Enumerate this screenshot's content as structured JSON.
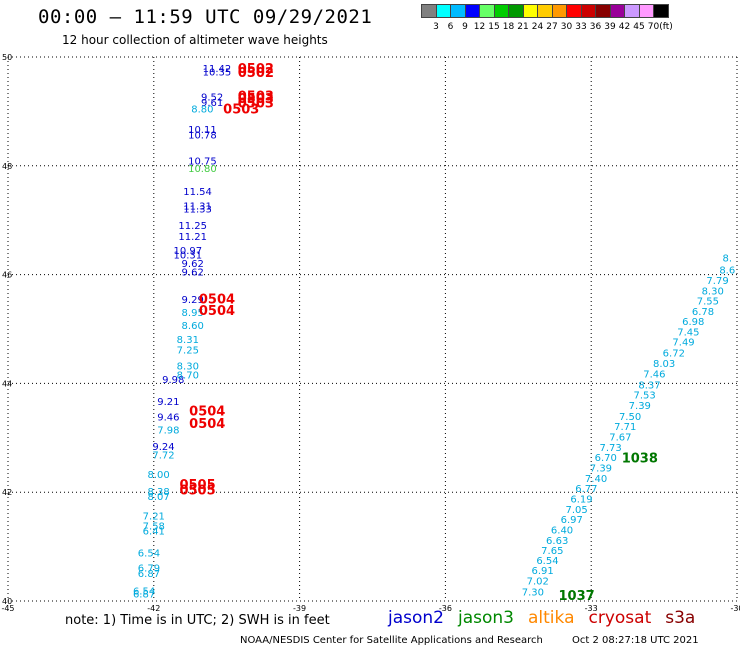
{
  "header": {
    "title": "00:00 – 11:59 UTC 09/29/2021",
    "subtitle": "12 hour collection of altimeter wave heights"
  },
  "legend": {
    "colors": [
      "#808080",
      "#00ffff",
      "#00bbff",
      "#0000ff",
      "#66ff66",
      "#00cc00",
      "#009900",
      "#ffff00",
      "#ffcc00",
      "#ff9900",
      "#ff0000",
      "#cc0000",
      "#880000",
      "#990099",
      "#cc99ff",
      "#ff99ff",
      "#000000"
    ],
    "labels": [
      "3",
      "6",
      "9",
      "12",
      "15",
      "18",
      "21",
      "24",
      "27",
      "30",
      "33",
      "36",
      "39",
      "42",
      "45",
      "70"
    ],
    "unit": "(ft)"
  },
  "footer": {
    "note": "note: 1) Time is in UTC; 2) SWH is in feet",
    "missions": [
      {
        "name": "jason2",
        "color": "#0000cc"
      },
      {
        "name": "jason3",
        "color": "#008800"
      },
      {
        "name": "altika",
        "color": "#ff8800"
      },
      {
        "name": "cryosat",
        "color": "#cc0000"
      },
      {
        "name": "s3a",
        "color": "#880000"
      }
    ],
    "credit": "NOAA/NESDIS Center for Satellite Applications and Research",
    "timestamp": "Oct  2 08:27:18 UTC 2021"
  },
  "chart_data": {
    "type": "scatter",
    "xlim": [
      -45,
      -30
    ],
    "ylim": [
      40,
      50
    ],
    "xticks": [
      -45,
      -42,
      -39,
      -36,
      -33,
      -30
    ],
    "yticks": [
      40,
      42,
      44,
      46,
      48,
      50
    ],
    "grid": true,
    "series": [
      {
        "name": "jason2",
        "color": "#0000cc",
        "points": [
          {
            "lon": -40.7,
            "lat": 49.72,
            "v": "11.42"
          },
          {
            "lon": -40.7,
            "lat": 49.66,
            "v": "10.35"
          },
          {
            "lon": -40.8,
            "lat": 49.2,
            "v": "9.52"
          },
          {
            "lon": -40.8,
            "lat": 49.1,
            "v": "9.61"
          },
          {
            "lon": -41.0,
            "lat": 48.6,
            "v": "10.11"
          },
          {
            "lon": -41.0,
            "lat": 48.5,
            "v": "10.78"
          },
          {
            "lon": -41.0,
            "lat": 48.02,
            "v": "10.75"
          },
          {
            "lon": -41.1,
            "lat": 47.46,
            "v": "11.54"
          },
          {
            "lon": -41.1,
            "lat": 47.2,
            "v": "11.31"
          },
          {
            "lon": -41.1,
            "lat": 47.14,
            "v": "11.33"
          },
          {
            "lon": -41.2,
            "lat": 46.84,
            "v": "11.25"
          },
          {
            "lon": -41.2,
            "lat": 46.64,
            "v": "11.21"
          },
          {
            "lon": -41.3,
            "lat": 46.38,
            "v": "10.97"
          },
          {
            "lon": -41.3,
            "lat": 46.3,
            "v": "10.31"
          },
          {
            "lon": -41.2,
            "lat": 46.14,
            "v": "9.62"
          },
          {
            "lon": -41.2,
            "lat": 45.98,
            "v": "9.62"
          },
          {
            "lon": -41.2,
            "lat": 45.48,
            "v": "9.29"
          },
          {
            "lon": -41.6,
            "lat": 44.01,
            "v": "9.98"
          },
          {
            "lon": -41.7,
            "lat": 43.6,
            "v": "9.21"
          },
          {
            "lon": -41.7,
            "lat": 43.32,
            "v": "9.46"
          },
          {
            "lon": -41.8,
            "lat": 42.78,
            "v": "9.24"
          }
        ]
      },
      {
        "name": "jason2-cyan",
        "color": "#00aadd",
        "points": [
          {
            "lon": -41.0,
            "lat": 48.98,
            "v": "8.80"
          },
          {
            "lon": -41.2,
            "lat": 45.24,
            "v": "8.95"
          },
          {
            "lon": -41.2,
            "lat": 45.0,
            "v": "8.60"
          },
          {
            "lon": -41.3,
            "lat": 44.74,
            "v": "8.31"
          },
          {
            "lon": -41.3,
            "lat": 44.55,
            "v": "7.25"
          },
          {
            "lon": -41.3,
            "lat": 44.26,
            "v": "8.30"
          },
          {
            "lon": -41.3,
            "lat": 44.09,
            "v": "8.70"
          },
          {
            "lon": -41.7,
            "lat": 43.08,
            "v": "7.98"
          },
          {
            "lon": -41.8,
            "lat": 42.62,
            "v": "7.72"
          },
          {
            "lon": -41.9,
            "lat": 42.26,
            "v": "8.00"
          },
          {
            "lon": -41.9,
            "lat": 41.95,
            "v": "8.38"
          },
          {
            "lon": -41.9,
            "lat": 41.86,
            "v": "8.07"
          },
          {
            "lon": -42.0,
            "lat": 41.5,
            "v": "7.21"
          },
          {
            "lon": -42.0,
            "lat": 41.31,
            "v": "7.58"
          },
          {
            "lon": -42.0,
            "lat": 41.22,
            "v": "6.41"
          },
          {
            "lon": -42.1,
            "lat": 40.82,
            "v": "6.54"
          },
          {
            "lon": -42.1,
            "lat": 40.54,
            "v": "6.79"
          },
          {
            "lon": -42.1,
            "lat": 40.44,
            "v": "6.87"
          },
          {
            "lon": -42.2,
            "lat": 40.12,
            "v": "6.54"
          },
          {
            "lon": -42.2,
            "lat": 40.06,
            "v": "6.87"
          }
        ]
      },
      {
        "name": "jason3-green",
        "color": "#44cc44",
        "points": [
          {
            "lon": -41.0,
            "lat": 47.89,
            "v": "10.80"
          }
        ]
      },
      {
        "name": "cryosat",
        "color": "#ee0000",
        "points": [
          {
            "lon": -39.9,
            "lat": 49.71,
            "v": "0502"
          },
          {
            "lon": -39.9,
            "lat": 49.63,
            "v": "0502"
          },
          {
            "lon": -39.9,
            "lat": 49.2,
            "v": "0503"
          },
          {
            "lon": -39.9,
            "lat": 49.15,
            "v": "0503"
          },
          {
            "lon": -39.9,
            "lat": 49.07,
            "v": "0503"
          },
          {
            "lon": -40.2,
            "lat": 48.96,
            "v": "0503"
          },
          {
            "lon": -40.7,
            "lat": 45.47,
            "v": "0504"
          },
          {
            "lon": -40.7,
            "lat": 45.26,
            "v": "0504"
          },
          {
            "lon": -40.9,
            "lat": 43.41,
            "v": "0504"
          },
          {
            "lon": -40.9,
            "lat": 43.18,
            "v": "0504"
          },
          {
            "lon": -41.1,
            "lat": 42.06,
            "v": "0505"
          },
          {
            "lon": -41.1,
            "lat": 41.96,
            "v": "0505"
          }
        ]
      },
      {
        "name": "jason3",
        "color": "#007700",
        "points": [
          {
            "lon": -32.0,
            "lat": 42.55,
            "v": "1038"
          },
          {
            "lon": -33.3,
            "lat": 40.02,
            "v": "1037"
          }
        ]
      },
      {
        "name": "track-east",
        "color": "#00aadd",
        "points": [
          {
            "lon": -30.2,
            "lat": 46.24,
            "v": "8."
          },
          {
            "lon": -30.2,
            "lat": 46.02,
            "v": "8.6"
          },
          {
            "lon": -30.4,
            "lat": 45.83,
            "v": "7.79"
          },
          {
            "lon": -30.5,
            "lat": 45.63,
            "v": "8.30"
          },
          {
            "lon": -30.6,
            "lat": 45.45,
            "v": "7.55"
          },
          {
            "lon": -30.7,
            "lat": 45.26,
            "v": "6.78"
          },
          {
            "lon": -30.9,
            "lat": 45.07,
            "v": "6.98"
          },
          {
            "lon": -31.0,
            "lat": 44.88,
            "v": "7.45"
          },
          {
            "lon": -31.1,
            "lat": 44.7,
            "v": "7.49"
          },
          {
            "lon": -31.3,
            "lat": 44.49,
            "v": "6.72"
          },
          {
            "lon": -31.5,
            "lat": 44.3,
            "v": "8.03"
          },
          {
            "lon": -31.7,
            "lat": 44.11,
            "v": "7.46"
          },
          {
            "lon": -31.8,
            "lat": 43.91,
            "v": "8.37"
          },
          {
            "lon": -31.9,
            "lat": 43.72,
            "v": "7.53"
          },
          {
            "lon": -32.0,
            "lat": 43.53,
            "v": "7.39"
          },
          {
            "lon": -32.2,
            "lat": 43.33,
            "v": "7.50"
          },
          {
            "lon": -32.3,
            "lat": 43.14,
            "v": "7.71"
          },
          {
            "lon": -32.4,
            "lat": 42.95,
            "v": "7.67"
          },
          {
            "lon": -32.6,
            "lat": 42.76,
            "v": "7.73"
          },
          {
            "lon": -32.7,
            "lat": 42.57,
            "v": "6.70"
          },
          {
            "lon": -32.8,
            "lat": 42.38,
            "v": "7.39"
          },
          {
            "lon": -32.9,
            "lat": 42.19,
            "v": "7.40"
          },
          {
            "lon": -33.1,
            "lat": 42.0,
            "v": "6.77"
          },
          {
            "lon": -33.2,
            "lat": 41.81,
            "v": "6.19"
          },
          {
            "lon": -33.3,
            "lat": 41.62,
            "v": "7.05"
          },
          {
            "lon": -33.4,
            "lat": 41.43,
            "v": "6.97"
          },
          {
            "lon": -33.6,
            "lat": 41.24,
            "v": "6.40"
          },
          {
            "lon": -33.7,
            "lat": 41.05,
            "v": "6.63"
          },
          {
            "lon": -33.8,
            "lat": 40.86,
            "v": "7.65"
          },
          {
            "lon": -33.9,
            "lat": 40.68,
            "v": "6.54"
          },
          {
            "lon": -34.0,
            "lat": 40.5,
            "v": "6.91"
          },
          {
            "lon": -34.1,
            "lat": 40.3,
            "v": "7.02"
          },
          {
            "lon": -34.2,
            "lat": 40.1,
            "v": "7.30"
          }
        ]
      }
    ]
  }
}
